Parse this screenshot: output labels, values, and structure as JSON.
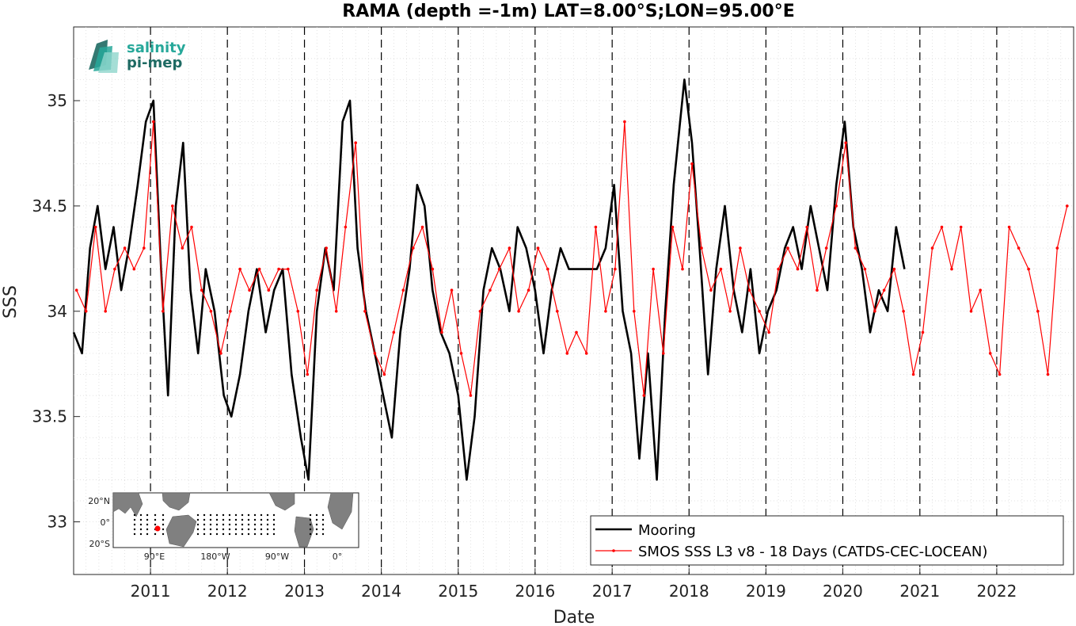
{
  "chart_data": {
    "type": "line",
    "title": "RAMA (depth =-1m) LAT=8.00°S;LON=95.00°E",
    "xlabel": "Date",
    "ylabel": "SSS",
    "xlim": [
      "2010-01-01",
      "2023-01-01"
    ],
    "ylim": [
      32.75,
      35.35
    ],
    "x_ticks": [
      "2011",
      "2012",
      "2013",
      "2014",
      "2015",
      "2016",
      "2017",
      "2018",
      "2019",
      "2020",
      "2021",
      "2022"
    ],
    "y_ticks": [
      "33",
      "33.5",
      "34",
      "34.5",
      "35"
    ],
    "grid": true,
    "year_lines": "dashed",
    "legend": "bottom-right",
    "series": [
      {
        "name": "Mooring",
        "color": "#000000",
        "x": [
          "2010-01-01",
          "2010-02-10",
          "2010-03-20",
          "2010-04-25",
          "2010-06-01",
          "2010-07-10",
          "2010-08-15",
          "2010-09-20",
          "2010-11-01",
          "2010-12-10",
          "2011-01-15",
          "2011-02-20",
          "2011-03-25",
          "2011-05-01",
          "2011-06-05",
          "2011-07-10",
          "2011-08-15",
          "2011-09-20",
          "2011-11-01",
          "2011-12-15",
          "2012-01-20",
          "2012-03-01",
          "2012-04-10",
          "2012-05-20",
          "2012-07-01",
          "2012-08-10",
          "2012-09-20",
          "2012-11-01",
          "2012-12-15",
          "2013-01-20",
          "2013-03-01",
          "2013-04-10",
          "2013-05-20",
          "2013-07-01",
          "2013-08-05",
          "2013-09-10",
          "2013-10-20",
          "2013-12-01",
          "2014-01-10",
          "2014-02-20",
          "2014-04-01",
          "2014-05-15",
          "2014-06-20",
          "2014-07-25",
          "2014-09-01",
          "2014-10-10",
          "2014-11-20",
          "2015-01-01",
          "2015-02-10",
          "2015-03-20",
          "2015-05-01",
          "2015-06-10",
          "2015-07-20",
          "2015-09-01",
          "2015-10-10",
          "2015-11-20",
          "2016-01-01",
          "2016-02-10",
          "2016-03-20",
          "2016-05-01",
          "2016-06-10",
          "2016-10-20",
          "2016-12-01",
          "2017-01-10",
          "2017-02-20",
          "2017-04-01",
          "2017-05-10",
          "2017-06-20",
          "2017-08-01",
          "2017-09-10",
          "2017-10-20",
          "2017-12-10",
          "2018-01-15",
          "2018-02-20",
          "2018-04-01",
          "2018-05-10",
          "2018-06-20",
          "2018-08-01",
          "2018-09-10",
          "2018-10-20",
          "2018-12-01",
          "2019-01-10",
          "2019-02-20",
          "2019-04-01",
          "2019-05-10",
          "2019-06-20",
          "2019-08-01",
          "2019-09-10",
          "2019-10-20",
          "2019-12-01",
          "2020-01-10",
          "2020-02-20",
          "2020-04-01",
          "2020-05-10",
          "2020-06-20",
          "2020-08-01",
          "2020-09-10",
          "2020-10-20"
        ],
        "y": [
          33.9,
          33.8,
          34.3,
          34.5,
          34.2,
          34.4,
          34.1,
          34.3,
          34.6,
          34.9,
          35.0,
          34.2,
          33.6,
          34.5,
          34.8,
          34.1,
          33.8,
          34.2,
          34.0,
          33.6,
          33.5,
          33.7,
          34.0,
          34.2,
          33.9,
          34.1,
          34.2,
          33.7,
          33.4,
          33.2,
          34.0,
          34.3,
          34.1,
          34.9,
          35.0,
          34.3,
          34.0,
          33.8,
          33.6,
          33.4,
          33.9,
          34.2,
          34.6,
          34.5,
          34.1,
          33.9,
          33.8,
          33.6,
          33.2,
          33.5,
          34.1,
          34.3,
          34.2,
          34.0,
          34.4,
          34.3,
          34.1,
          33.8,
          34.1,
          34.3,
          34.2,
          34.2,
          34.3,
          34.6,
          34.0,
          33.8,
          33.3,
          33.8,
          33.2,
          34.0,
          34.6,
          35.1,
          34.8,
          34.3,
          33.7,
          34.2,
          34.5,
          34.1,
          33.9,
          34.2,
          33.8,
          34.0,
          34.1,
          34.3,
          34.4,
          34.2,
          34.5,
          34.3,
          34.1,
          34.6,
          34.9,
          34.4,
          34.2,
          33.9,
          34.1,
          34.0,
          34.4,
          34.2
        ]
      },
      {
        "name": "SMOS SSS L3 v8 - 18 Days (CATDS-CEC-LOCEAN)",
        "color": "#ff0000",
        "x": [
          "2010-01-15",
          "2010-03-01",
          "2010-04-15",
          "2010-06-01",
          "2010-07-15",
          "2010-09-01",
          "2010-10-15",
          "2010-12-01",
          "2011-01-15",
          "2011-03-01",
          "2011-04-15",
          "2011-06-01",
          "2011-07-15",
          "2011-09-01",
          "2011-10-15",
          "2011-12-01",
          "2012-01-15",
          "2012-03-01",
          "2012-04-15",
          "2012-06-01",
          "2012-07-15",
          "2012-09-01",
          "2012-10-15",
          "2012-12-01",
          "2013-01-15",
          "2013-03-01",
          "2013-04-15",
          "2013-06-01",
          "2013-07-15",
          "2013-09-01",
          "2013-10-15",
          "2013-12-01",
          "2014-01-15",
          "2014-03-01",
          "2014-04-15",
          "2014-06-01",
          "2014-07-15",
          "2014-09-01",
          "2014-10-15",
          "2014-12-01",
          "2015-01-15",
          "2015-03-01",
          "2015-04-15",
          "2015-06-01",
          "2015-07-15",
          "2015-09-01",
          "2015-10-15",
          "2015-12-01",
          "2016-01-15",
          "2016-03-01",
          "2016-04-15",
          "2016-06-01",
          "2016-07-15",
          "2016-09-01",
          "2016-10-15",
          "2016-12-01",
          "2017-01-15",
          "2017-03-01",
          "2017-04-15",
          "2017-06-01",
          "2017-07-15",
          "2017-09-01",
          "2017-10-15",
          "2017-12-01",
          "2018-01-15",
          "2018-03-01",
          "2018-04-15",
          "2018-06-01",
          "2018-07-15",
          "2018-09-01",
          "2018-10-15",
          "2018-12-01",
          "2019-01-15",
          "2019-03-01",
          "2019-04-15",
          "2019-06-01",
          "2019-07-15",
          "2019-09-01",
          "2019-10-15",
          "2019-12-01",
          "2020-01-15",
          "2020-03-01",
          "2020-04-15",
          "2020-06-01",
          "2020-07-15",
          "2020-09-01",
          "2020-10-15",
          "2020-12-01",
          "2021-01-15",
          "2021-03-01",
          "2021-04-15",
          "2021-06-01",
          "2021-07-15",
          "2021-09-01",
          "2021-10-15",
          "2021-12-01",
          "2022-01-15",
          "2022-03-01",
          "2022-04-15",
          "2022-06-01",
          "2022-07-15",
          "2022-09-01",
          "2022-10-15",
          "2022-12-01"
        ],
        "y": [
          34.1,
          34.0,
          34.4,
          34.0,
          34.2,
          34.3,
          34.2,
          34.3,
          34.9,
          34.0,
          34.5,
          34.3,
          34.4,
          34.1,
          34.0,
          33.8,
          34.0,
          34.2,
          34.1,
          34.2,
          34.1,
          34.2,
          34.2,
          34.0,
          33.7,
          34.1,
          34.3,
          34.0,
          34.4,
          34.8,
          34.0,
          33.8,
          33.7,
          33.9,
          34.1,
          34.3,
          34.4,
          34.2,
          33.9,
          34.1,
          33.8,
          33.6,
          34.0,
          34.1,
          34.2,
          34.3,
          34.0,
          34.1,
          34.3,
          34.2,
          34.0,
          33.8,
          33.9,
          33.8,
          34.4,
          34.0,
          34.2,
          34.9,
          34.0,
          33.6,
          34.2,
          33.8,
          34.4,
          34.2,
          34.7,
          34.3,
          34.1,
          34.2,
          34.0,
          34.3,
          34.1,
          34.0,
          33.9,
          34.2,
          34.3,
          34.2,
          34.4,
          34.1,
          34.3,
          34.5,
          34.8,
          34.3,
          34.2,
          34.0,
          34.1,
          34.2,
          34.0,
          33.7,
          33.9,
          34.3,
          34.4,
          34.2,
          34.4,
          34.0,
          34.1,
          33.8,
          33.7,
          34.4,
          34.3,
          34.2,
          34.0,
          33.7,
          34.3,
          34.5
        ]
      }
    ]
  },
  "logo": {
    "line1": "salinity",
    "line2": "pi-mep"
  },
  "inset_map": {
    "y_labels": [
      "20°N",
      "0°",
      "20°S"
    ],
    "x_labels": [
      "90°E",
      "180°W",
      "90°W",
      "0°"
    ]
  }
}
